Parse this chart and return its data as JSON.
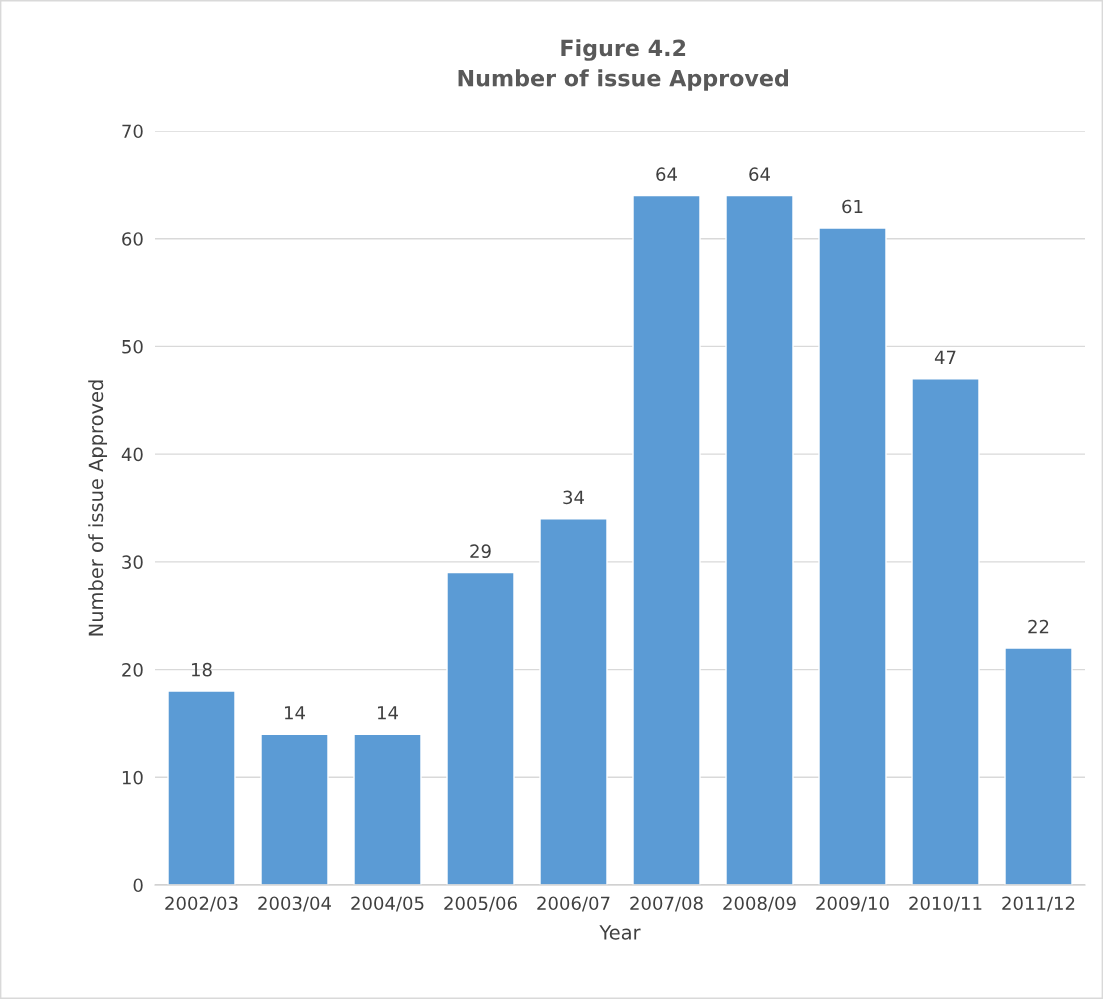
{
  "chart_data": {
    "type": "bar",
    "title": "Figure 4.2",
    "subtitle": "Number of issue Approved",
    "xlabel": "Year",
    "ylabel": "Number of issue Approved",
    "categories": [
      "2002/03",
      "2003/04",
      "2004/05",
      "2005/06",
      "2006/07",
      "2007/08",
      "2008/09",
      "2009/10",
      "2010/11",
      "2011/12"
    ],
    "values": [
      18,
      14,
      14,
      29,
      34,
      64,
      64,
      61,
      47,
      22
    ],
    "color": "#5b9bd5",
    "ylim": [
      0,
      70
    ],
    "yticks": [
      0,
      10,
      20,
      30,
      40,
      50,
      60,
      70
    ],
    "grid": "y",
    "data_labels": true
  }
}
